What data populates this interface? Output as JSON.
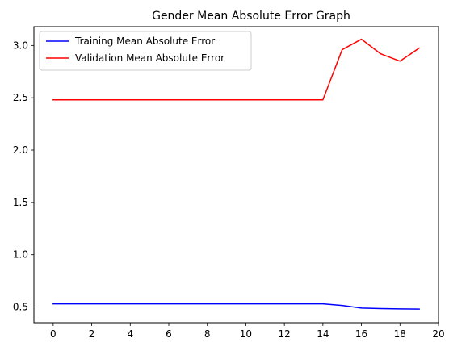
{
  "chart_data": {
    "type": "line",
    "title": "Gender Mean Absolute Error Graph",
    "xlabel": "",
    "ylabel": "",
    "xlim": [
      -1,
      20
    ],
    "ylim": [
      0.35,
      3.18
    ],
    "xticks": [
      0,
      2,
      4,
      6,
      8,
      10,
      12,
      14,
      16,
      18,
      20
    ],
    "yticks": [
      0.5,
      1.0,
      1.5,
      2.0,
      2.5,
      3.0
    ],
    "ytick_labels": [
      "0.5",
      "1.0",
      "1.5",
      "2.0",
      "2.5",
      "3.0"
    ],
    "grid": false,
    "legend_position": "top-left",
    "x": [
      0,
      1,
      2,
      3,
      4,
      5,
      6,
      7,
      8,
      9,
      10,
      11,
      12,
      13,
      14,
      15,
      16,
      17,
      18,
      19
    ],
    "series": [
      {
        "name": "Training Mean Absolute Error",
        "color": "#0000ff",
        "values": [
          0.53,
          0.53,
          0.53,
          0.53,
          0.53,
          0.53,
          0.53,
          0.53,
          0.53,
          0.53,
          0.53,
          0.53,
          0.53,
          0.53,
          0.53,
          0.515,
          0.49,
          0.485,
          0.482,
          0.48
        ]
      },
      {
        "name": "Validation Mean Absolute Error",
        "color": "#ff0000",
        "values": [
          2.48,
          2.48,
          2.48,
          2.48,
          2.48,
          2.48,
          2.48,
          2.48,
          2.48,
          2.48,
          2.48,
          2.48,
          2.48,
          2.48,
          2.48,
          2.96,
          3.06,
          2.92,
          2.85,
          2.975
        ]
      }
    ]
  }
}
